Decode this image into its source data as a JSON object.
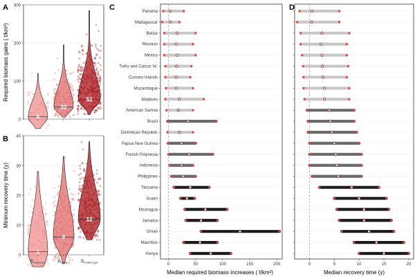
{
  "colors": {
    "low": "#f08f8f",
    "msy": "#e06a6a",
    "high": "#a8141a",
    "bar_light": "#c8c8c8",
    "bar_mid": "#6a6a6a",
    "bar_dark": "#1a1a1a",
    "median_point": "#d8d8d8",
    "end_point": "#e8483c"
  },
  "panels": {
    "A": {
      "letter": "A"
    },
    "B": {
      "letter": "B"
    },
    "C": {
      "letter": "C"
    },
    "D": {
      "letter": "D"
    }
  },
  "chart_data": [
    {
      "id": "A",
      "type": "violin",
      "ylabel": "Required biomass gains ( t/km²)",
      "ylim": [
        0,
        300
      ],
      "yticks": [
        0,
        100,
        200,
        300
      ],
      "categories": [
        "B_PGMY,low",
        "B_MMSY",
        "B_PGMY,high"
      ],
      "medians": [
        6,
        32,
        52
      ],
      "median_labels": [
        "6",
        "32",
        "52"
      ]
    },
    {
      "id": "B",
      "type": "violin",
      "ylabel": "Minimum recovery time (y)",
      "ylim": [
        0,
        40
      ],
      "yticks": [
        0,
        10,
        20,
        30,
        40
      ],
      "categories": [
        "B_PGMY,low",
        "B_MMSY",
        "B_PGMY,high"
      ],
      "tick_labels": [
        {
          "main": "B",
          "sub": "PGMY,low"
        },
        {
          "main": "B",
          "sub": "MMSY"
        },
        {
          "main": "B",
          "sub": "PGMY,high"
        }
      ],
      "medians": [
        1,
        6,
        12
      ],
      "median_labels": [
        "1",
        "6",
        "12"
      ]
    },
    {
      "id": "C",
      "type": "dumbbell",
      "xlabel": "Median required biomass increases ( t/km²)",
      "xlim": [
        -15,
        210
      ],
      "xticks": [
        0,
        50,
        100,
        150,
        200
      ],
      "countries": [
        "Panama",
        "Madagascar",
        "Belize",
        "Reunion",
        "Mexico",
        "Turks and Caicos Isl.",
        "Comoro Islands",
        "Mozambique",
        "Maldives",
        "American Samoa",
        "Brazil",
        "Dominican Republic",
        "Papua New Guinea",
        "French Polynesia",
        "Indonesia",
        "Philippines",
        "Tanzania",
        "Guam",
        "Nicaragua",
        "Jamaica",
        "Oman",
        "Mauritius",
        "Kenya"
      ],
      "starts": [
        -10,
        -12,
        -8,
        -8,
        -8,
        -6,
        -6,
        -5,
        -6,
        -4,
        -2,
        -2,
        -1,
        0,
        2,
        5,
        10,
        22,
        30,
        32,
        60,
        28,
        40
      ],
      "ends": [
        28,
        20,
        50,
        45,
        50,
        42,
        40,
        45,
        65,
        45,
        88,
        45,
        50,
        82,
        45,
        50,
        75,
        48,
        108,
        90,
        205,
        90,
        115
      ],
      "medians": [
        3,
        3,
        16,
        14,
        16,
        15,
        14,
        14,
        20,
        18,
        36,
        20,
        24,
        38,
        24,
        27,
        40,
        34,
        68,
        60,
        132,
        58,
        78
      ],
      "colors": [
        "light",
        "light",
        "light",
        "light",
        "light",
        "light",
        "light",
        "light",
        "light",
        "light",
        "mid",
        "light",
        "mid",
        "mid",
        "mid",
        "mid",
        "dark",
        "dark",
        "dark",
        "dark",
        "dark",
        "dark",
        "dark"
      ]
    },
    {
      "id": "D",
      "type": "dumbbell",
      "xlabel": "Median recovery time (y)",
      "xlim": [
        -3,
        21
      ],
      "xticks": [
        0,
        5,
        10,
        15,
        20
      ],
      "starts": [
        -2,
        -2.5,
        -1.8,
        -1.8,
        -1.5,
        -1.3,
        -1.2,
        -1.2,
        -1,
        -0.5,
        -0.3,
        -0.3,
        0,
        0,
        0,
        0.5,
        2,
        5,
        5.5,
        6,
        6.5,
        9,
        10
      ],
      "ends": [
        6,
        6,
        8,
        7.5,
        7.5,
        7.8,
        7.5,
        8,
        8,
        9,
        9,
        9.5,
        10,
        10.5,
        10.5,
        10.5,
        14,
        15.5,
        16,
        16.5,
        17,
        19,
        20
      ],
      "medians": [
        0.5,
        0.4,
        2.5,
        2.3,
        2.5,
        2.6,
        2.7,
        3,
        3,
        4,
        4.2,
        4.5,
        5,
        5.3,
        5.5,
        5.8,
        8.5,
        10,
        11,
        11,
        12,
        13.5,
        15
      ],
      "colors": [
        "light",
        "light",
        "light",
        "light",
        "light",
        "light",
        "light",
        "light",
        "light",
        "mid",
        "mid",
        "mid",
        "mid",
        "mid",
        "mid",
        "mid",
        "dark",
        "dark",
        "dark",
        "dark",
        "dark",
        "dark",
        "dark"
      ]
    }
  ]
}
